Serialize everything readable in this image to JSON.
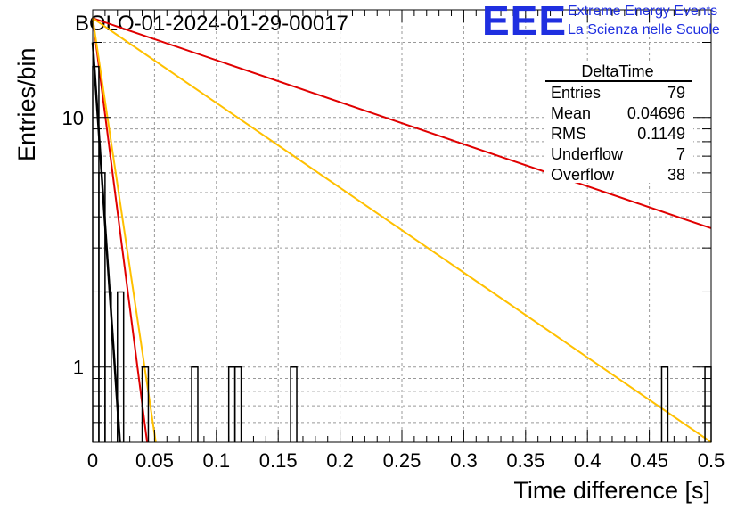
{
  "header": {
    "run_title": "BOLO-01-2024-01-29-00017"
  },
  "logo": {
    "mark": "EEE",
    "line1": "Extreme Energy Events",
    "line2": "La Scienza nelle Scuole",
    "color": "#1f2fe0"
  },
  "stats_box": {
    "title": "DeltaTime",
    "rows": [
      {
        "label": "Entries",
        "value": "79"
      },
      {
        "label": "Mean",
        "value": "0.04696"
      },
      {
        "label": "RMS",
        "value": "0.1149"
      },
      {
        "label": "Underflow",
        "value": "7"
      },
      {
        "label": "Overflow",
        "value": "38"
      }
    ]
  },
  "chart_data": {
    "type": "histogram",
    "xlabel": "Time difference [s]",
    "ylabel": "Entries/bin",
    "xlim": [
      0,
      0.5
    ],
    "ylim": [
      0.5,
      27
    ],
    "y_scale": "log",
    "grid": true,
    "x_ticks": [
      "0",
      "0.05",
      "0.1",
      "0.15",
      "0.2",
      "0.25",
      "0.3",
      "0.35",
      "0.4",
      "0.45",
      "0.5"
    ],
    "y_ticks": [
      "1",
      "10"
    ],
    "bin_width": 0.005,
    "bins": [
      {
        "x0": 0.0,
        "count": 16
      },
      {
        "x0": 0.005,
        "count": 6
      },
      {
        "x0": 0.01,
        "count": 2
      },
      {
        "x0": 0.02,
        "count": 2
      },
      {
        "x0": 0.04,
        "count": 1
      },
      {
        "x0": 0.08,
        "count": 1
      },
      {
        "x0": 0.11,
        "count": 1
      },
      {
        "x0": 0.115,
        "count": 1
      },
      {
        "x0": 0.16,
        "count": 1
      },
      {
        "x0": 0.46,
        "count": 1
      },
      {
        "x0": 0.495,
        "count": 1
      }
    ],
    "curves": [
      {
        "color": "#e00000",
        "points": [
          [
            0,
            25
          ],
          [
            0.5,
            3.6
          ]
        ]
      },
      {
        "color": "#ffc000",
        "points": [
          [
            0,
            25
          ],
          [
            0.5,
            0.5
          ]
        ]
      },
      {
        "color": "#e00000",
        "points": [
          [
            0,
            25
          ],
          [
            0.044,
            0.5
          ]
        ]
      },
      {
        "color": "#ffc000",
        "points": [
          [
            0,
            25
          ],
          [
            0.051,
            0.5
          ]
        ]
      },
      {
        "color": "#000000",
        "points": [
          [
            0,
            20
          ],
          [
            0.022,
            0.5
          ]
        ]
      }
    ],
    "colors": {
      "histogram": "#000000",
      "grid": "#999999"
    }
  }
}
